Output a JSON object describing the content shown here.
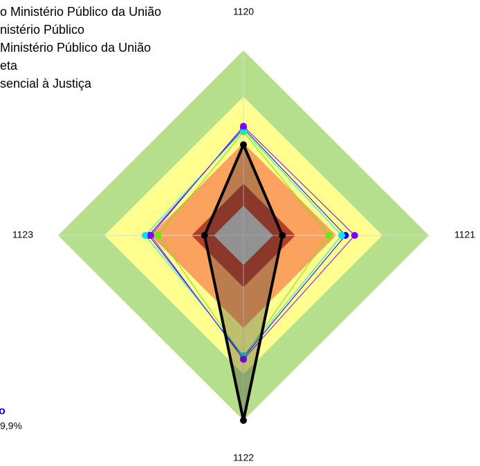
{
  "chart_data": {
    "type": "radar",
    "categories": [
      "1120",
      "1121",
      "1122",
      "1123"
    ],
    "rlim": [
      0,
      100
    ],
    "bands": [
      {
        "value": 100,
        "color": "#b5df8a"
      },
      {
        "value": 75,
        "color": "#ffff8f"
      },
      {
        "value": 50,
        "color": "#fba25f"
      },
      {
        "value": 28,
        "color": "#b5402a"
      },
      {
        "value": 16,
        "color": "#c0c0c0"
      }
    ],
    "series": [
      {
        "name": "sencial à Justiça",
        "color": "#0000ff",
        "values": [
          58,
          55,
          66,
          51
        ]
      },
      {
        "name": "eta",
        "color": "#66ee00",
        "values": [
          56,
          46,
          66,
          46
        ]
      },
      {
        "name": " Ministério Público da União",
        "color": "#00e5ff",
        "values": [
          57,
          53,
          65,
          53
        ]
      },
      {
        "name": "nistério Público",
        "color": "#8000ff",
        "values": [
          59,
          60,
          67,
          50
        ]
      },
      {
        "name": "o Ministério Público da União",
        "color": "#000000",
        "values": [
          49,
          21,
          100,
          21
        ]
      }
    ],
    "annotations": [
      "o",
      "9,9%"
    ]
  }
}
